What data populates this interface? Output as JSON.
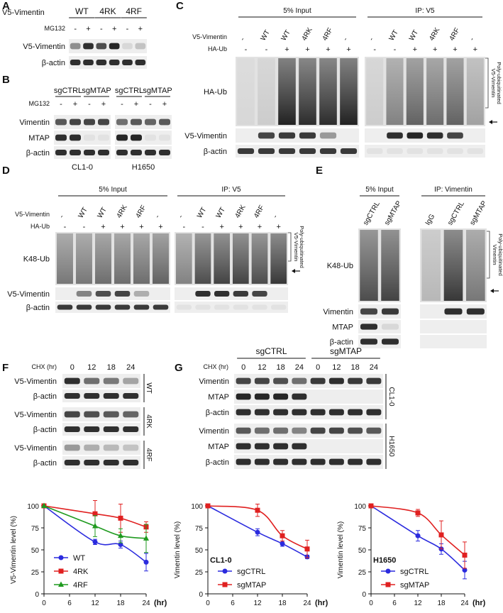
{
  "panels": {
    "A": {
      "label": "A",
      "header": "V5-Vimentin",
      "groups": [
        "WT",
        "4RK",
        "4RF"
      ],
      "treatment": "MG132",
      "signs": [
        "-",
        "+",
        "-",
        "+",
        "-",
        "+"
      ],
      "rows": [
        "V5-Vimentin",
        "β-actin"
      ]
    },
    "B": {
      "label": "B",
      "groups": [
        "sgCTRL",
        "sgMTAP",
        "sgCTRL",
        "sgMTAP"
      ],
      "treatment": "MG132",
      "signs": [
        "-",
        "+",
        "-",
        "+",
        "-",
        "+",
        "-",
        "+"
      ],
      "rows": [
        "Vimentin",
        "MTAP",
        "β-actin"
      ],
      "cell_lines": [
        "CL1-0",
        "H1650"
      ]
    },
    "C": {
      "label": "C",
      "sections": [
        "5% Input",
        "IP: V5"
      ],
      "lane_header": "V5-Vimentin",
      "input_lanes": [
        "-",
        "WT",
        "WT",
        "4RK",
        "4RF",
        "-"
      ],
      "ip_lanes": [
        "-",
        "WT",
        "WT",
        "4RK",
        "4RF",
        "-"
      ],
      "ub_header": "HA-Ub",
      "input_signs": [
        "-",
        "-",
        "+",
        "+",
        "+",
        "+"
      ],
      "ip_signs": [
        "-",
        "-",
        "+",
        "+",
        "+",
        "+"
      ],
      "rows": [
        "HA-Ub",
        "V5-Vimentin",
        "β-actin"
      ],
      "bracket": [
        "Poly-ubiquitinated",
        "V5-Vimentin"
      ]
    },
    "D": {
      "label": "D",
      "sections": [
        "5% Input",
        "IP: V5"
      ],
      "lane_header": "V5-Vimentin",
      "input_lanes": [
        "-",
        "WT",
        "WT",
        "4RK",
        "4RF",
        "-"
      ],
      "ip_lanes": [
        "-",
        "WT",
        "WT",
        "4RK",
        "4RF",
        "-"
      ],
      "ub_header": "HA-Ub",
      "input_signs": [
        "-",
        "-",
        "+",
        "+",
        "+",
        "+"
      ],
      "ip_signs": [
        "-",
        "-",
        "+",
        "+",
        "+",
        "+"
      ],
      "rows": [
        "K48-Ub",
        "V5-Vimentin",
        "β-actin"
      ],
      "bracket": [
        "Poly-ubiquitinated",
        "V5-Vimentin"
      ]
    },
    "E": {
      "label": "E",
      "sections": [
        "5% Input",
        "IP: Vimentin"
      ],
      "input_lanes": [
        "sgCTRL",
        "sgMTAP"
      ],
      "ip_lanes": [
        "IgG",
        "sgCTRL",
        "sgMTAP"
      ],
      "rows": [
        "K48-Ub",
        "Vimentin",
        "MTAP",
        "β-actin"
      ],
      "bracket": [
        "Poly-ubiquitinated",
        "Vimentin"
      ]
    },
    "F": {
      "label": "F",
      "chx": "CHX (hr)",
      "times": [
        0,
        12,
        18,
        24
      ],
      "groups": [
        {
          "name": "WT",
          "rows": [
            "V5-Vimentin",
            "β-actin"
          ]
        },
        {
          "name": "4RK",
          "rows": [
            "V5-Vimentin",
            "β-actin"
          ]
        },
        {
          "name": "4RF",
          "rows": [
            "V5-Vimentin",
            "β-actin"
          ]
        }
      ]
    },
    "G": {
      "label": "G",
      "groups": [
        "sgCTRL",
        "sgMTAP"
      ],
      "chx": "CHX (hr)",
      "times": [
        0,
        12,
        18,
        24,
        0,
        12,
        18,
        24
      ],
      "blocks": [
        {
          "name": "CL1-0",
          "rows": [
            "Vimentin",
            "MTAP",
            "β-actin"
          ]
        },
        {
          "name": "H1650",
          "rows": [
            "Vimentin",
            "MTAP",
            "β-actin"
          ]
        }
      ]
    }
  },
  "chart_data": [
    {
      "type": "line",
      "ylabel": "V5-Vimentin level (%)",
      "xlabel": "(hr)",
      "x": [
        0,
        12,
        18,
        24
      ],
      "xlim": [
        0,
        24
      ],
      "xticks": [
        0,
        6,
        12,
        18,
        24
      ],
      "ylim": [
        0,
        100
      ],
      "yticks": [
        0,
        25,
        50,
        75,
        100
      ],
      "legend": "lower left",
      "series": [
        {
          "name": "WT",
          "color": "#2b2bde",
          "marker": "circle",
          "values": [
            100,
            59,
            56,
            36
          ],
          "errors": [
            null,
            3,
            4,
            10
          ]
        },
        {
          "name": "4RK",
          "color": "#e02020",
          "marker": "square",
          "values": [
            100,
            91,
            86,
            76
          ],
          "errors": [
            null,
            15,
            16,
            6
          ]
        },
        {
          "name": "4RF",
          "color": "#1f9a1f",
          "marker": "triangle",
          "values": [
            100,
            77,
            66,
            63
          ],
          "errors": [
            null,
            12,
            8,
            16
          ]
        }
      ]
    },
    {
      "type": "line",
      "ylabel": "Vimentin level (%)",
      "xlabel": "(hr)",
      "annotation": "CL1-0",
      "x": [
        0,
        12,
        18,
        24
      ],
      "xlim": [
        0,
        24
      ],
      "xticks": [
        0,
        6,
        12,
        18,
        24
      ],
      "ylim": [
        0,
        100
      ],
      "yticks": [
        0,
        25,
        50,
        75,
        100
      ],
      "legend": "lower left",
      "series": [
        {
          "name": "sgCTRL",
          "color": "#2b2bde",
          "marker": "circle",
          "values": [
            100,
            70,
            57,
            42
          ],
          "errors": [
            null,
            4,
            3,
            2
          ]
        },
        {
          "name": "sgMTAP",
          "color": "#e02020",
          "marker": "square",
          "values": [
            100,
            95,
            66,
            51
          ],
          "errors": [
            null,
            7,
            6,
            10
          ]
        }
      ]
    },
    {
      "type": "line",
      "ylabel": "Vimentin level (%)",
      "xlabel": "(hr)",
      "annotation": "H1650",
      "x": [
        0,
        12,
        18,
        24
      ],
      "xlim": [
        0,
        24
      ],
      "xticks": [
        0,
        6,
        12,
        18,
        24
      ],
      "ylim": [
        0,
        100
      ],
      "yticks": [
        0,
        25,
        50,
        75,
        100
      ],
      "legend": "lower left",
      "series": [
        {
          "name": "sgCTRL",
          "color": "#2b2bde",
          "marker": "circle",
          "values": [
            100,
            66,
            51,
            27
          ],
          "errors": [
            null,
            6,
            6,
            10
          ]
        },
        {
          "name": "sgMTAP",
          "color": "#e02020",
          "marker": "square",
          "values": [
            100,
            92,
            67,
            44
          ],
          "errors": [
            null,
            4,
            16,
            15
          ]
        }
      ]
    }
  ]
}
